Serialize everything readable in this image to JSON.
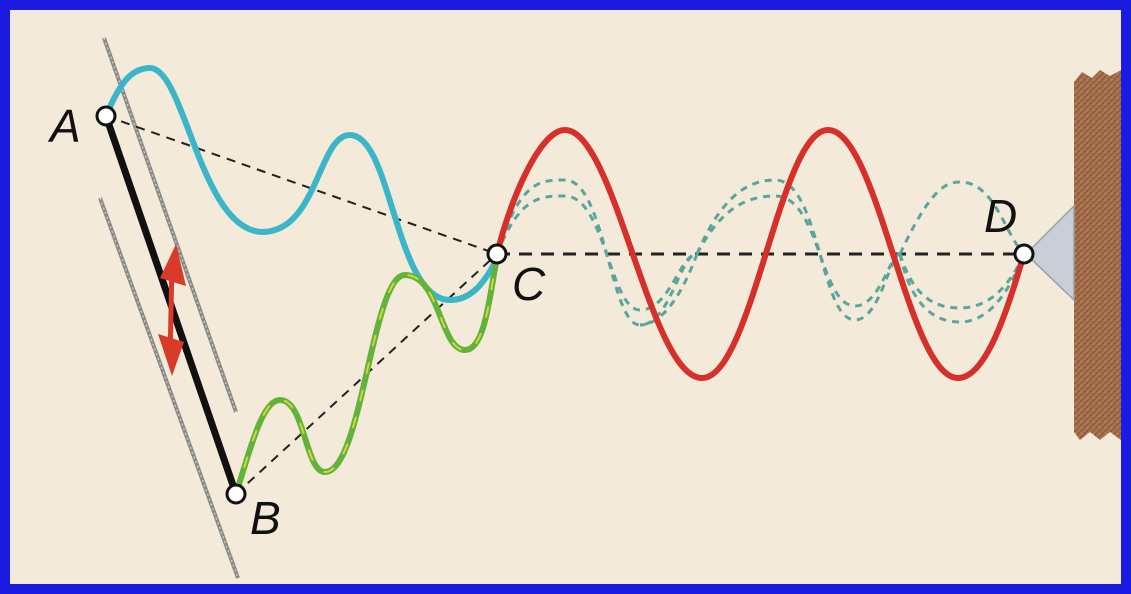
{
  "points": {
    "A": "A",
    "B": "B",
    "C": "C",
    "D": "D"
  },
  "colors": {
    "frame": "#1a1ae0",
    "background": "#f3ead9",
    "wave_A_to_C": "#3bb6c8",
    "wave_B_to_C_green": "#62b33a",
    "wave_B_to_C_yellow": "#d8d33a",
    "wave_C_to_D": "#d5302a",
    "dashed_wave": "#5aa59e",
    "rod": "#111111",
    "guide_lines": "#8a8a8a",
    "arrow": "#d93a2a",
    "wall": "#a8714e"
  },
  "icons": {
    "arrow": "double-arrow-icon",
    "wall": "wall-hatch-icon",
    "support": "triangle-support-icon"
  }
}
